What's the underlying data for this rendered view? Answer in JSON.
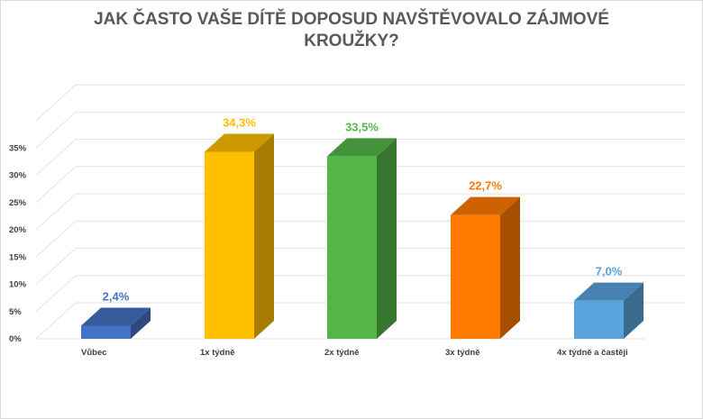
{
  "chart_data": {
    "type": "bar",
    "title": "JAK ČASTO VAŠE DÍTĚ DOPOSUD NAVŠTĚVOVALO ZÁJMOVÉ KROUŽKY?",
    "categories": [
      "Vůbec",
      "1x týdně",
      "2x týdně",
      "3x týdně",
      "4x týdně a častěji"
    ],
    "values": [
      2.4,
      34.3,
      33.5,
      22.7,
      7.0
    ],
    "value_labels": [
      "2,4%",
      "34,3%",
      "33,5%",
      "22,7%",
      "7,0%"
    ],
    "colors": [
      "#4472c4",
      "#ffc000",
      "#55b648",
      "#ff7a00",
      "#5aa3dc"
    ],
    "y_ticks": [
      "0%",
      "5%",
      "10%",
      "15%",
      "20%",
      "25%",
      "30%",
      "35%"
    ],
    "ylim": [
      0,
      40
    ],
    "xlabel": "",
    "ylabel": "",
    "grid": true,
    "style": "3d-bar"
  }
}
